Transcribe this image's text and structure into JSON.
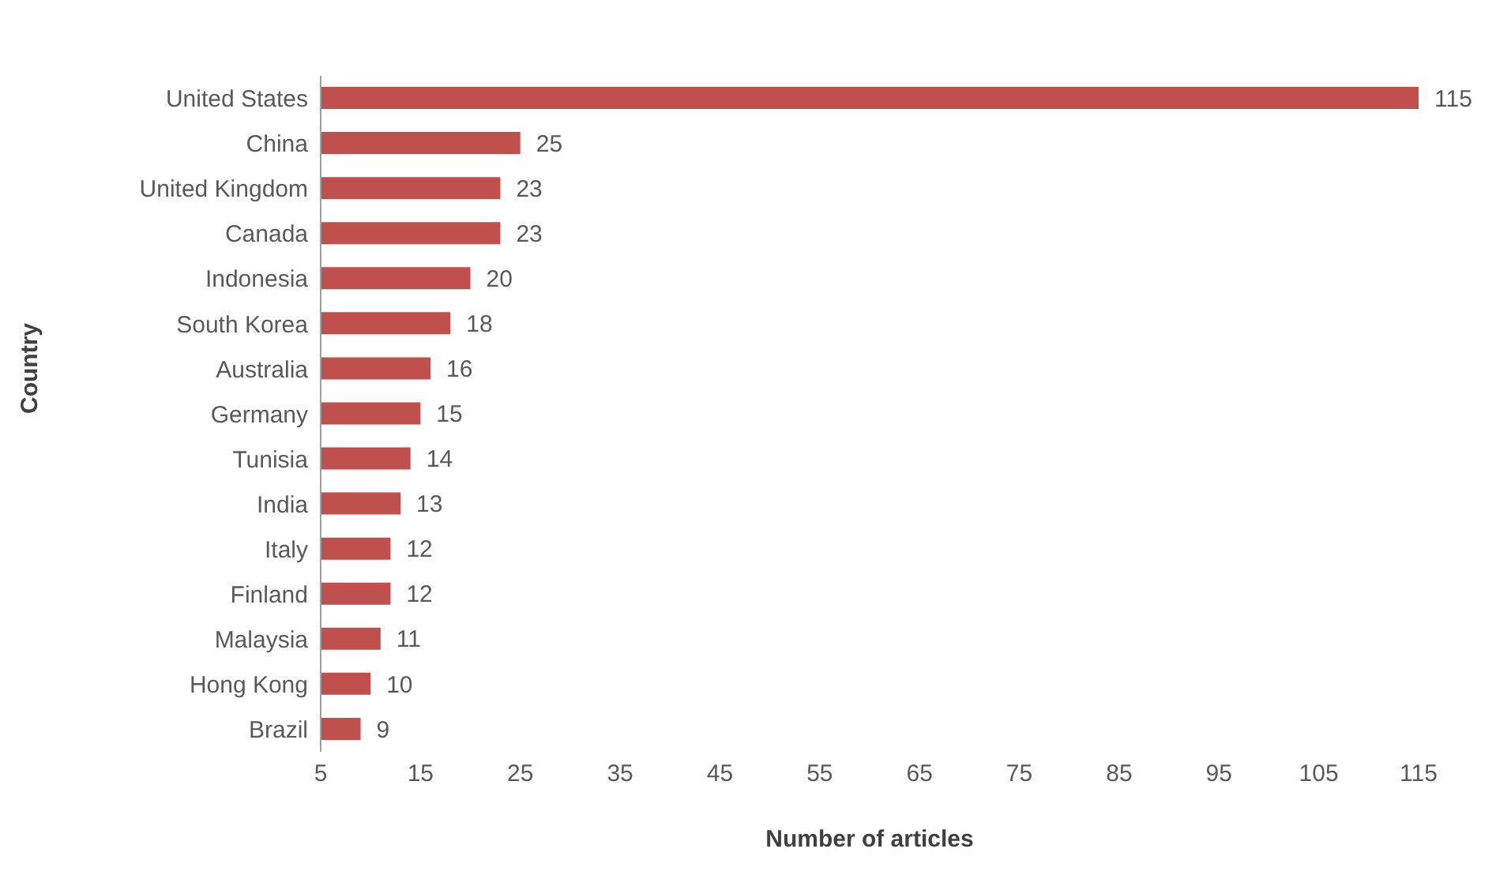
{
  "chart_data": {
    "type": "bar",
    "orientation": "horizontal",
    "xlabel": "Number of articles",
    "ylabel": "Country",
    "categories": [
      "United States",
      "China",
      "United Kingdom",
      "Canada",
      "Indonesia",
      "South Korea",
      "Australia",
      "Germany",
      "Tunisia",
      "India",
      "Italy",
      "Finland",
      "Malaysia",
      "Hong Kong",
      "Brazil"
    ],
    "values": [
      115,
      25,
      23,
      23,
      20,
      18,
      16,
      15,
      14,
      13,
      12,
      12,
      11,
      10,
      9
    ],
    "color": "#c0504d",
    "xlim": [
      5,
      115
    ],
    "xticks": [
      5,
      15,
      25,
      35,
      45,
      55,
      65,
      75,
      85,
      95,
      105,
      115
    ],
    "data_labels": true
  }
}
